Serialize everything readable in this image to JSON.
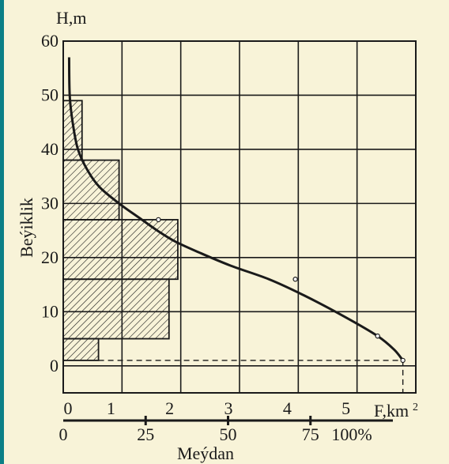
{
  "colors": {
    "background": "#f8f3d8",
    "frame": "#0b7f86",
    "ink": "#1a1a1a"
  },
  "chart_data": {
    "type": "line",
    "ylabel_unit": "H,m",
    "ylabel": "Beýiklik",
    "xlabel_unit": "F,km",
    "xlabel_unit_sup": "2",
    "xlabel_bottom": "Meýdan",
    "ylim": [
      -5,
      60
    ],
    "xlim": [
      0,
      6
    ],
    "y_ticks": [
      "0",
      "10",
      "20",
      "30",
      "40",
      "50",
      "60"
    ],
    "x_ticks": [
      "0",
      "1",
      "2",
      "3",
      "4",
      "5"
    ],
    "percent_ticks": [
      "0",
      "25",
      "50",
      "75",
      "100%"
    ],
    "grid": true,
    "curve": {
      "x": [
        0.1,
        0.11,
        0.16,
        0.25,
        0.42,
        0.62,
        0.95,
        1.3,
        1.6,
        1.9,
        2.3,
        2.85,
        3.5,
        4.1,
        4.8,
        5.35,
        5.63,
        5.78
      ],
      "y": [
        57,
        50,
        45,
        40,
        36,
        33,
        30,
        27.3,
        25,
        23,
        21,
        18.5,
        16,
        13,
        9,
        5.5,
        3,
        1
      ]
    },
    "curve_markers": {
      "x": [
        5.78,
        5.35,
        3.95,
        1.62
      ],
      "y": [
        1,
        5.5,
        16,
        27
      ]
    },
    "reference_dashes": {
      "y_level": 1,
      "x_end": 5.78
    },
    "histogram": [
      {
        "y_from": 1,
        "y_to": 5,
        "width": 0.6
      },
      {
        "y_from": 5,
        "y_to": 16,
        "width": 1.8
      },
      {
        "y_from": 16,
        "y_to": 27,
        "width": 1.95
      },
      {
        "y_from": 27,
        "y_to": 38,
        "width": 0.95
      },
      {
        "y_from": 38,
        "y_to": 49,
        "width": 0.32
      }
    ]
  }
}
